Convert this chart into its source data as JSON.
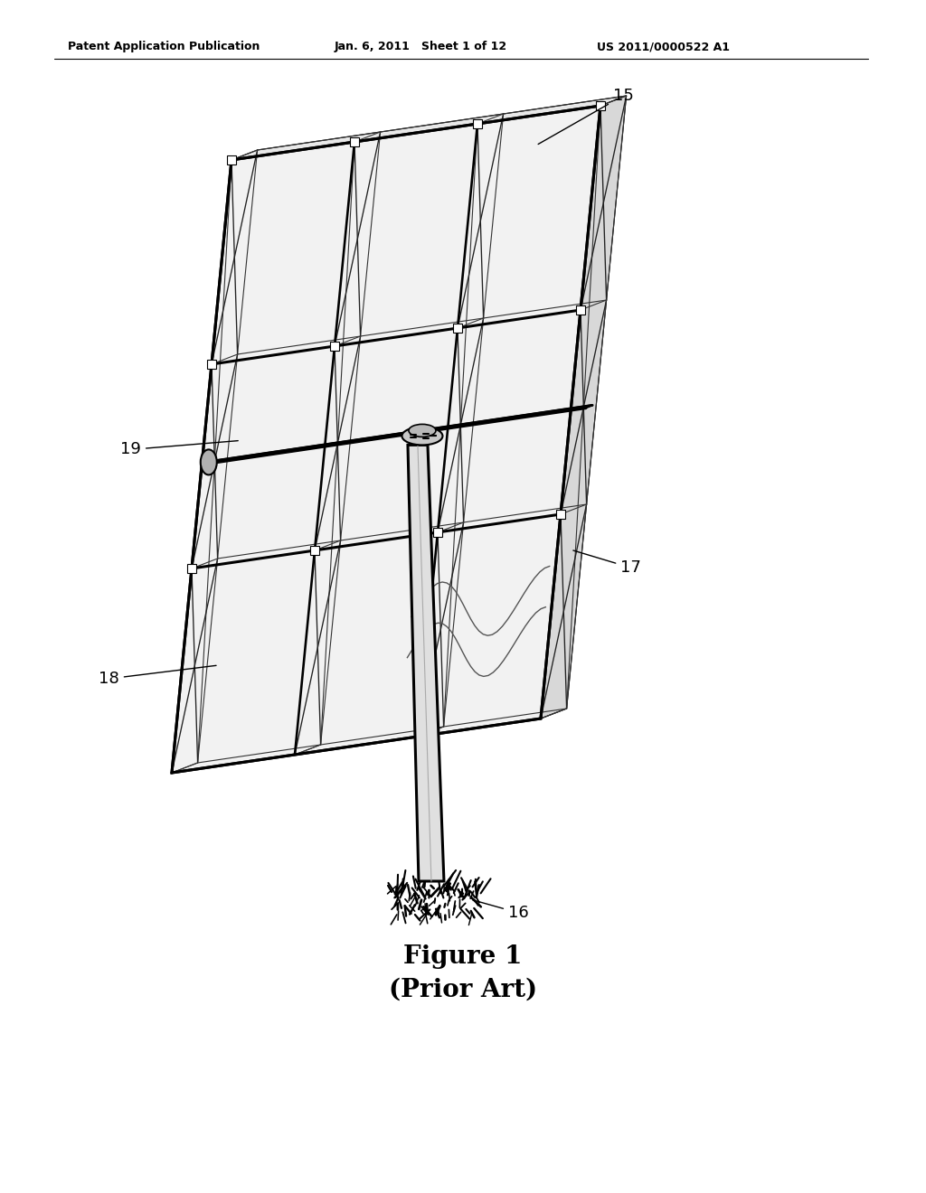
{
  "bg_color": "#ffffff",
  "header_left": "Patent Application Publication",
  "header_mid": "Jan. 6, 2011   Sheet 1 of 12",
  "header_right": "US 2011/0000522 A1",
  "figure_caption_line1": "Figure 1",
  "figure_caption_line2": "(Prior Art)",
  "header_fontsize": 9,
  "caption_fontsize": 20,
  "label_fontsize": 13,
  "lw_frame": 2.2,
  "lw_truss": 1.2,
  "lw_thin": 0.8,
  "lw_tube": 2.8
}
